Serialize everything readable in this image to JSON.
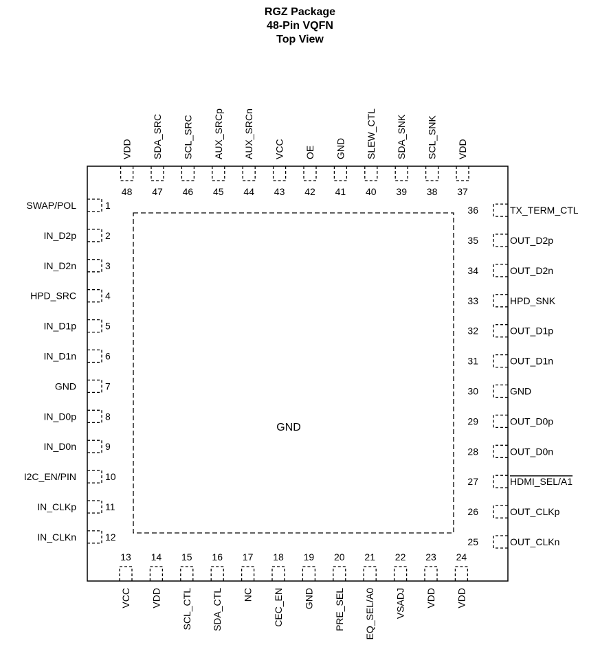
{
  "title": {
    "line1": "RGZ Package",
    "line2": "48-Pin VQFN",
    "line3": "Top View"
  },
  "center_label": "GND",
  "pins_left": [
    {
      "num": "1",
      "name": "SWAP/POL"
    },
    {
      "num": "2",
      "name": "IN_D2p"
    },
    {
      "num": "3",
      "name": "IN_D2n"
    },
    {
      "num": "4",
      "name": "HPD_SRC"
    },
    {
      "num": "5",
      "name": "IN_D1p"
    },
    {
      "num": "6",
      "name": "IN_D1n"
    },
    {
      "num": "7",
      "name": "GND"
    },
    {
      "num": "8",
      "name": "IN_D0p"
    },
    {
      "num": "9",
      "name": "IN_D0n"
    },
    {
      "num": "10",
      "name": "I2C_EN/PIN"
    },
    {
      "num": "11",
      "name": "IN_CLKp"
    },
    {
      "num": "12",
      "name": "IN_CLKn"
    }
  ],
  "pins_bottom": [
    {
      "num": "13",
      "name": "VCC"
    },
    {
      "num": "14",
      "name": "VDD"
    },
    {
      "num": "15",
      "name": "SCL_CTL"
    },
    {
      "num": "16",
      "name": "SDA_CTL"
    },
    {
      "num": "17",
      "name": "NC"
    },
    {
      "num": "18",
      "name": "CEC_EN"
    },
    {
      "num": "19",
      "name": "GND"
    },
    {
      "num": "20",
      "name": "PRE_SEL"
    },
    {
      "num": "21",
      "name": "EQ_SEL/A0"
    },
    {
      "num": "22",
      "name": "VSADJ"
    },
    {
      "num": "23",
      "name": "VDD"
    },
    {
      "num": "24",
      "name": "VDD"
    }
  ],
  "pins_right": [
    {
      "num": "25",
      "name": "OUT_CLKn"
    },
    {
      "num": "26",
      "name": "OUT_CLKp"
    },
    {
      "num": "27",
      "name": "HDMI_SEL/A1",
      "overline": true
    },
    {
      "num": "28",
      "name": "OUT_D0n"
    },
    {
      "num": "29",
      "name": "OUT_D0p"
    },
    {
      "num": "30",
      "name": "GND"
    },
    {
      "num": "31",
      "name": "OUT_D1n"
    },
    {
      "num": "32",
      "name": "OUT_D1p"
    },
    {
      "num": "33",
      "name": "HPD_SNK"
    },
    {
      "num": "34",
      "name": "OUT_D2n"
    },
    {
      "num": "35",
      "name": "OUT_D2p"
    },
    {
      "num": "36",
      "name": "TX_TERM_CTL"
    }
  ],
  "pins_top": [
    {
      "num": "37",
      "name": "VDD"
    },
    {
      "num": "38",
      "name": "SCL_SNK"
    },
    {
      "num": "39",
      "name": "SDA_SNK"
    },
    {
      "num": "40",
      "name": "SLEW_CTL"
    },
    {
      "num": "41",
      "name": "GND"
    },
    {
      "num": "42",
      "name": "OE"
    },
    {
      "num": "43",
      "name": "VCC"
    },
    {
      "num": "44",
      "name": "AUX_SRCn"
    },
    {
      "num": "45",
      "name": "AUX_SRCp"
    },
    {
      "num": "46",
      "name": "SCL_SRC"
    },
    {
      "num": "47",
      "name": "SDA_SRC"
    },
    {
      "num": "48",
      "name": "VDD"
    }
  ]
}
